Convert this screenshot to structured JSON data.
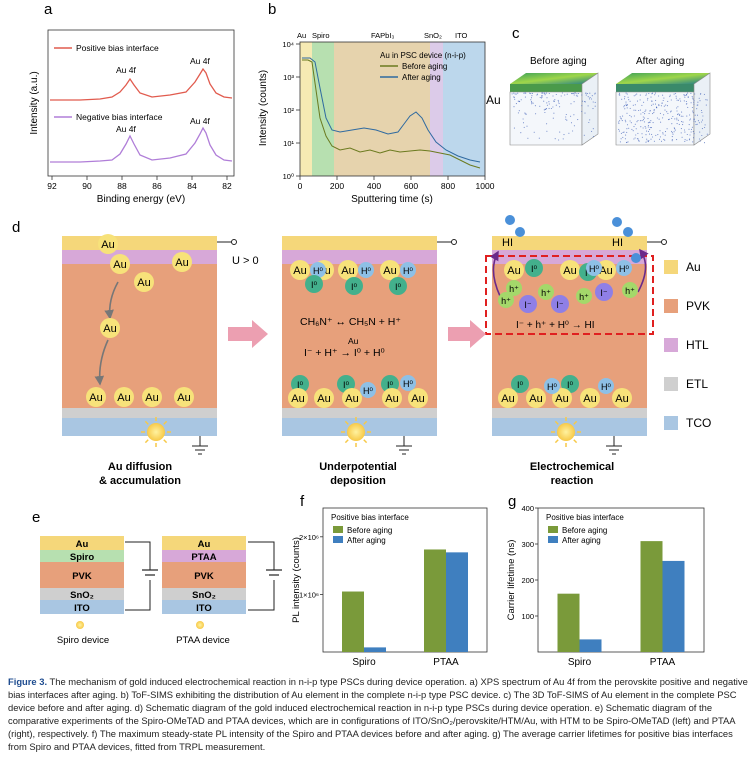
{
  "panels": {
    "a": {
      "label": "a",
      "ylabel": "Intensity (a.u.)",
      "xlabel": "Binding energy (eV)",
      "xticks": [
        "92",
        "90",
        "88",
        "86",
        "84",
        "82"
      ],
      "legend_top": "Positive bias interface",
      "legend_bottom": "Negative bias interface",
      "peak_label": "Au 4f",
      "top_color": "#e15b4e",
      "bottom_color": "#b07ed8"
    },
    "b": {
      "label": "b",
      "ylabel": "Intensity (counts)",
      "xlabel": "Sputtering time (s)",
      "xticks": [
        "0",
        "200",
        "400",
        "600",
        "800",
        "1000"
      ],
      "yticks": [
        "10⁰",
        "10¹",
        "10²",
        "10³",
        "10⁴"
      ],
      "region_labels": [
        "Au",
        "Spiro",
        "FAPbI₃",
        "SnO₂",
        "ITO"
      ],
      "legend_title": "Au in PSC device (n-i-p)",
      "legend_before": "Before aging",
      "legend_after": "After aging",
      "before_color": "#6b7a1f",
      "after_color": "#2f6aa0"
    },
    "c": {
      "label": "c",
      "title_before": "Before aging",
      "title_after": "After aging",
      "side_label": "Au"
    },
    "d": {
      "label": "d",
      "au": "Au",
      "h0": "H⁰",
      "i0": "I⁰",
      "hplus": "h⁺",
      "iminus": "I⁻",
      "hi": "HI",
      "bias": "U > 0",
      "eq1": "CH₆N⁺ ↔ CH₅N + H⁺",
      "eq2": "I⁻ + H⁺ → I⁰ + H⁰",
      "eq2_cat": "Au",
      "eq3": "I⁻ + h⁺ + H⁰ → HI",
      "caption1": [
        "Au diffusion",
        "& accumulation"
      ],
      "caption2": [
        "Underpotential",
        "deposition"
      ],
      "caption3": [
        "Electrochemical",
        "reaction"
      ],
      "legend": [
        {
          "label": "Au",
          "color": "#f5d77a"
        },
        {
          "label": "PVK",
          "color": "#e7a07b"
        },
        {
          "label": "HTL",
          "color": "#d7a8d8"
        },
        {
          "label": "ETL",
          "color": "#cfcfcf"
        },
        {
          "label": "TCO",
          "color": "#a9c6e2"
        }
      ]
    },
    "e": {
      "label": "e",
      "layers": [
        "Au",
        "Spiro",
        "PVK",
        "SnO₂",
        "ITO"
      ],
      "layers2": [
        "Au",
        "PTAA",
        "PVK",
        "SnO₂",
        "ITO"
      ],
      "device1": "Spiro device",
      "device2": "PTAA device"
    }
  },
  "chart_data": [
    {
      "panel": "f",
      "type": "bar",
      "ylabel": "PL intensity (counts)",
      "legend_title": "Positive bias interface",
      "categories": [
        "Spiro",
        "PTAA"
      ],
      "ylim": [
        0,
        2500000
      ],
      "yticks": [
        {
          "v": 1000000,
          "t": "1×10⁶"
        },
        {
          "v": 2000000,
          "t": "2×10⁶"
        }
      ],
      "series": [
        {
          "name": "Before aging",
          "values": [
            1050000,
            1780000
          ],
          "color": "#7a9a3a"
        },
        {
          "name": "After aging",
          "values": [
            80000,
            1730000
          ],
          "color": "#3f7fbf"
        }
      ]
    },
    {
      "panel": "g",
      "type": "bar",
      "ylabel": "Carrier lifetime (ns)",
      "legend_title": "Positive bias interface",
      "categories": [
        "Spiro",
        "PTAA"
      ],
      "ylim": [
        0,
        400
      ],
      "yticks": [
        {
          "v": 100,
          "t": "100"
        },
        {
          "v": 200,
          "t": "200"
        },
        {
          "v": 300,
          "t": "300"
        },
        {
          "v": 400,
          "t": "400"
        }
      ],
      "series": [
        {
          "name": "Before aging",
          "values": [
            162,
            308
          ],
          "color": "#7a9a3a"
        },
        {
          "name": "After aging",
          "values": [
            35,
            253
          ],
          "color": "#3f7fbf"
        }
      ]
    }
  ],
  "caption": {
    "lead": "Figure 3.",
    "text": "The mechanism of gold induced electrochemical reaction in n-i-p type PSCs during device operation. a) XPS spectrum of Au 4f from the perovskite positive and negative bias interfaces after aging. b) ToF-SIMS exhibiting the distribution of Au element in the complete n-i-p type PSC device. c) The 3D ToF-SIMS of Au element in the complete PSC device before and after aging. d) Schematic diagram of the gold induced electrochemical reaction in n-i-p type PSCs during device operation. e) Schematic diagram of the comparative experiments of the Spiro-OMeTAD and PTAA devices, which are in configurations of ITO/SnO₂/perovskite/HTM/Au, with HTM to be Spiro-OMeTAD (left) and PTAA (right), respectively. f) The maximum steady-state PL intensity of the Spiro and PTAA devices before and after aging. g) The average carrier lifetimes for positive bias interfaces from Spiro and PTAA devices, fitted from TRPL measurement."
  }
}
